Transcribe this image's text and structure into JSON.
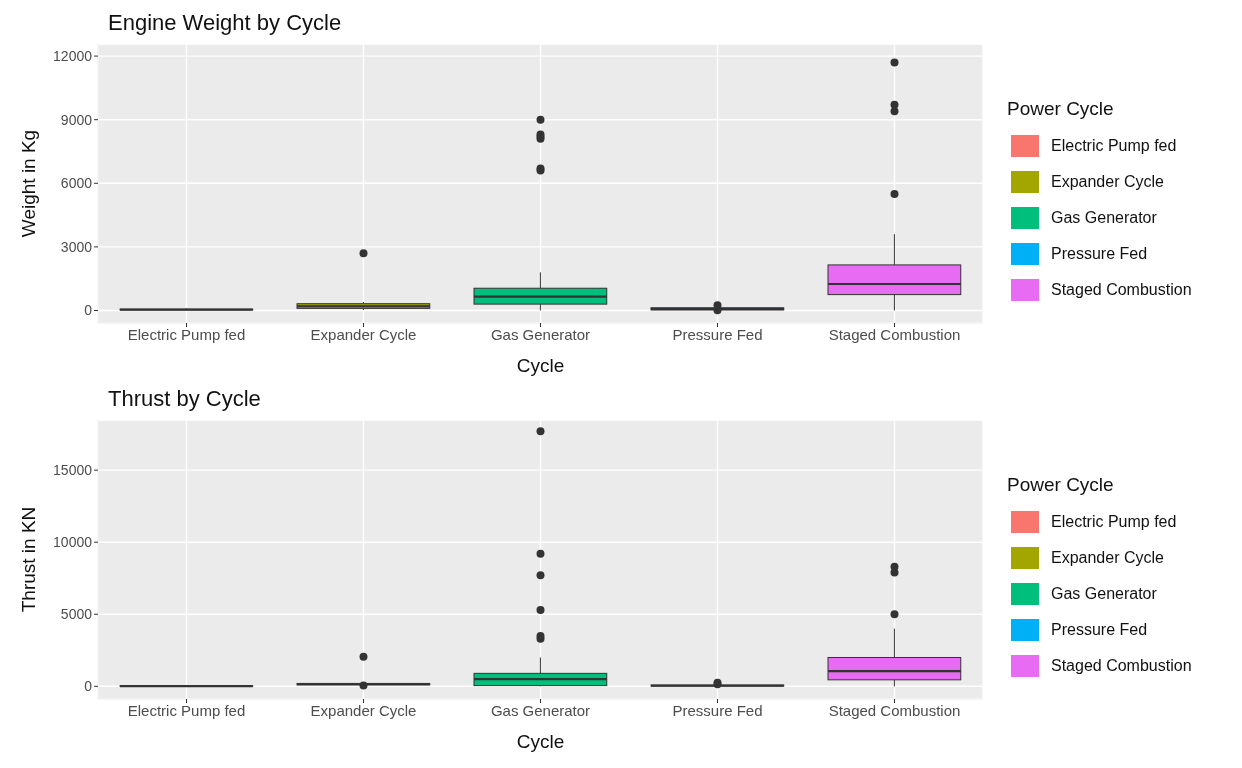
{
  "chart_data": [
    {
      "type": "box",
      "title": "Engine Weight by Cycle",
      "xlabel": "Cycle",
      "ylabel": "Weight in Kg",
      "legend_title": "Power Cycle",
      "legend": "right",
      "grid": true,
      "categories": [
        "Electric Pump fed",
        "Expander Cycle",
        "Gas Generator",
        "Pressure Fed",
        "Staged Combustion"
      ],
      "series": [
        {
          "name": "Electric Pump fed",
          "color": "#f8766d",
          "boxes": [
            {
              "low": 10,
              "q1": 30,
              "median": 40,
              "q3": 60,
              "high": 100
            },
            null,
            null,
            null,
            null
          ]
        },
        {
          "name": "Expander Cycle",
          "color": "#a3a500",
          "boxes": [
            null,
            {
              "low": 20,
              "q1": 100,
              "median": 200,
              "q3": 320,
              "high": 400,
              "outliers": [
                2700
              ]
            },
            null,
            null,
            null
          ]
        },
        {
          "name": "Gas Generator",
          "color": "#00bf7d",
          "boxes": [
            null,
            null,
            {
              "low": 0,
              "q1": 300,
              "median": 650,
              "q3": 1050,
              "high": 1800,
              "outliers": [
                6600,
                6700,
                8100,
                8200,
                8300,
                9000
              ]
            },
            null,
            null
          ]
        },
        {
          "name": "Pressure Fed",
          "color": "#00b0f6",
          "boxes": [
            null,
            null,
            null,
            {
              "low": 0,
              "q1": 30,
              "median": 60,
              "q3": 130,
              "high": 150,
              "outliers": [
                10,
                250
              ]
            },
            null
          ]
        },
        {
          "name": "Staged Combustion",
          "color": "#e76bf3",
          "boxes": [
            null,
            null,
            null,
            null,
            {
              "low": 0,
              "q1": 750,
              "median": 1250,
              "q3": 2150,
              "high": 3600,
              "outliers": [
                5500,
                9400,
                9700,
                11700
              ]
            }
          ]
        }
      ],
      "ylim": [
        -590,
        12570
      ],
      "yticks": [
        0,
        3000,
        6000,
        9000,
        12000
      ]
    },
    {
      "type": "box",
      "title": "Thrust by Cycle",
      "xlabel": "Cycle",
      "ylabel": "Thrust in KN",
      "legend_title": "Power Cycle",
      "legend": "right",
      "grid": true,
      "categories": [
        "Electric Pump fed",
        "Expander Cycle",
        "Gas Generator",
        "Pressure Fed",
        "Staged Combustion"
      ],
      "series": [
        {
          "name": "Electric Pump fed",
          "color": "#f8766d",
          "boxes": [
            {
              "low": 0,
              "q1": 10,
              "median": 20,
              "q3": 40,
              "high": 60
            },
            null,
            null,
            null,
            null
          ]
        },
        {
          "name": "Expander Cycle",
          "color": "#a3a500",
          "boxes": [
            null,
            {
              "low": 50,
              "q1": 100,
              "median": 150,
              "q3": 200,
              "high": 250,
              "outliers": [
                60,
                2050
              ]
            },
            null,
            null,
            null
          ]
        },
        {
          "name": "Gas Generator",
          "color": "#00bf7d",
          "boxes": [
            null,
            null,
            {
              "low": 0,
              "q1": 50,
              "median": 500,
              "q3": 900,
              "high": 2000,
              "outliers": [
                3300,
                3500,
                5300,
                7700,
                9200,
                17700
              ]
            },
            null,
            null
          ]
        },
        {
          "name": "Pressure Fed",
          "color": "#00b0f6",
          "boxes": [
            null,
            null,
            null,
            {
              "low": 0,
              "q1": 20,
              "median": 50,
              "q3": 80,
              "high": 120,
              "outliers": [
                150,
                250
              ]
            },
            null
          ]
        },
        {
          "name": "Staged Combustion",
          "color": "#e76bf3",
          "boxes": [
            null,
            null,
            null,
            null,
            {
              "low": 0,
              "q1": 450,
              "median": 1050,
              "q3": 2000,
              "high": 4000,
              "outliers": [
                5000,
                7900,
                8300
              ]
            }
          ]
        }
      ],
      "ylim": [
        -880,
        18480
      ],
      "yticks": [
        0,
        5000,
        10000,
        15000
      ]
    }
  ]
}
